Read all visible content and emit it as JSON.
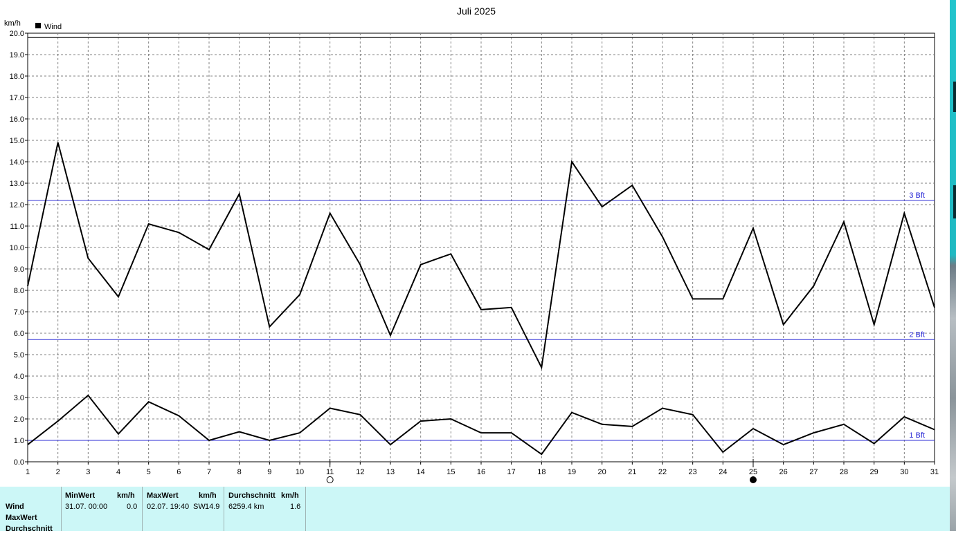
{
  "chart_data": {
    "type": "line",
    "title": "Juli 2025",
    "ylabel": "km/h",
    "xlabel": "",
    "x": [
      1,
      2,
      3,
      4,
      5,
      6,
      7,
      8,
      9,
      10,
      11,
      12,
      13,
      14,
      15,
      16,
      17,
      18,
      19,
      20,
      21,
      22,
      23,
      24,
      25,
      26,
      27,
      28,
      29,
      30,
      31
    ],
    "xlim": [
      1,
      31
    ],
    "ylim": [
      0,
      20
    ],
    "yticks": [
      "0.0",
      "1.0",
      "2.0",
      "3.0",
      "4.0",
      "5.0",
      "6.0",
      "7.0",
      "8.0",
      "9.0",
      "10.0",
      "11.0",
      "12.0",
      "13.0",
      "14.0",
      "15.0",
      "16.0",
      "17.0",
      "18.0",
      "19.0",
      "20.0"
    ],
    "grid": true,
    "legend": {
      "position": "top-left",
      "entries": [
        {
          "label": "Wind",
          "color": "#000000"
        }
      ]
    },
    "series": [
      {
        "name": "Wind",
        "color": "#000000",
        "values": [
          8.2,
          14.9,
          9.5,
          7.7,
          11.1,
          10.7,
          9.9,
          12.5,
          6.3,
          7.8,
          11.6,
          9.2,
          5.9,
          9.2,
          9.7,
          7.1,
          7.2,
          4.4,
          14.0,
          11.9,
          12.9,
          10.5,
          7.6,
          7.6,
          10.9,
          6.4,
          8.2,
          11.2,
          6.4,
          11.6,
          7.2
        ]
      },
      {
        "color": "#000000",
        "values": [
          0.8,
          1.9,
          3.1,
          1.3,
          2.8,
          2.15,
          1.0,
          1.4,
          1.0,
          1.35,
          2.5,
          2.2,
          0.8,
          1.9,
          2.0,
          1.35,
          1.35,
          0.35,
          2.3,
          1.75,
          1.65,
          2.5,
          2.2,
          0.45,
          1.55,
          0.8,
          1.35,
          1.75,
          0.85,
          2.1,
          1.5
        ]
      }
    ],
    "reference_lines": [
      {
        "value": 19.8,
        "label": "",
        "color": "#000000"
      },
      {
        "value": 12.2,
        "label": "3 Bft",
        "color": "#2b2bd6"
      },
      {
        "value": 5.7,
        "label": "2 Bft",
        "color": "#2b2bd6"
      },
      {
        "value": 1.0,
        "label": "1 Bft",
        "color": "#2b2bd6"
      }
    ],
    "moon_phases": [
      {
        "day": 11,
        "phase": "full"
      },
      {
        "day": 25,
        "phase": "new"
      }
    ]
  },
  "stats": {
    "row_labels": [
      "Wind",
      "MaxWert",
      "Durchschnitt"
    ],
    "min": {
      "header": "MinWert",
      "unit": "km/h",
      "datetime": "31.07.  00:00",
      "value": "0.0"
    },
    "max": {
      "header": "MaxWert",
      "unit": "km/h",
      "datetime": "02.07.  19:40",
      "dir": "SW",
      "value": "14.9"
    },
    "avg": {
      "header": "Durchschnitt",
      "unit": "km/h",
      "distance": "6259.4 km",
      "value": "1.6"
    }
  },
  "colors": {
    "panel_bg": "#ccf7f7",
    "grid": "#808080",
    "bft_line": "#2b2bd6"
  }
}
